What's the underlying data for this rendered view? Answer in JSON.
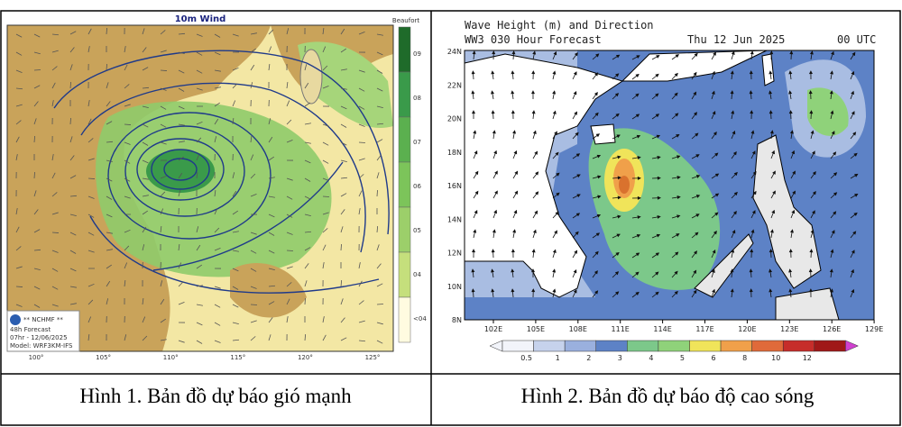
{
  "figure1": {
    "title": "10m Wind",
    "legend_title": "Beaufort",
    "legend_labels": [
      "09",
      "08",
      "07",
      "06",
      "05",
      "04",
      "<04"
    ],
    "x_labels": [
      "100°",
      "105°",
      "110°",
      "115°",
      "120°",
      "125°"
    ],
    "logo": "** NCHMF **",
    "forecast": "48h Forecast",
    "valid": "07hr - 12/06/2025",
    "model": "Model: WRF3KM-IFS",
    "caption": "Hình 1. Bản đồ dự báo gió mạnh"
  },
  "figure2": {
    "title": "Wave Height (m) and Direction",
    "subtitle": "WW3 030 Hour Forecast",
    "date": "Thu 12 Jun 2025",
    "time": "00 UTC",
    "y_labels": [
      "24N",
      "22N",
      "20N",
      "18N",
      "16N",
      "14N",
      "12N",
      "10N",
      "8N"
    ],
    "x_labels": [
      "102E",
      "105E",
      "108E",
      "111E",
      "114E",
      "117E",
      "120E",
      "123E",
      "126E",
      "129E"
    ],
    "colorbar_labels": [
      "0.5",
      "1",
      "2",
      "3",
      "4",
      "5",
      "6",
      "8",
      "10",
      "12"
    ],
    "caption": "Hình 2. Bản đồ dự báo độ cao sóng"
  }
}
